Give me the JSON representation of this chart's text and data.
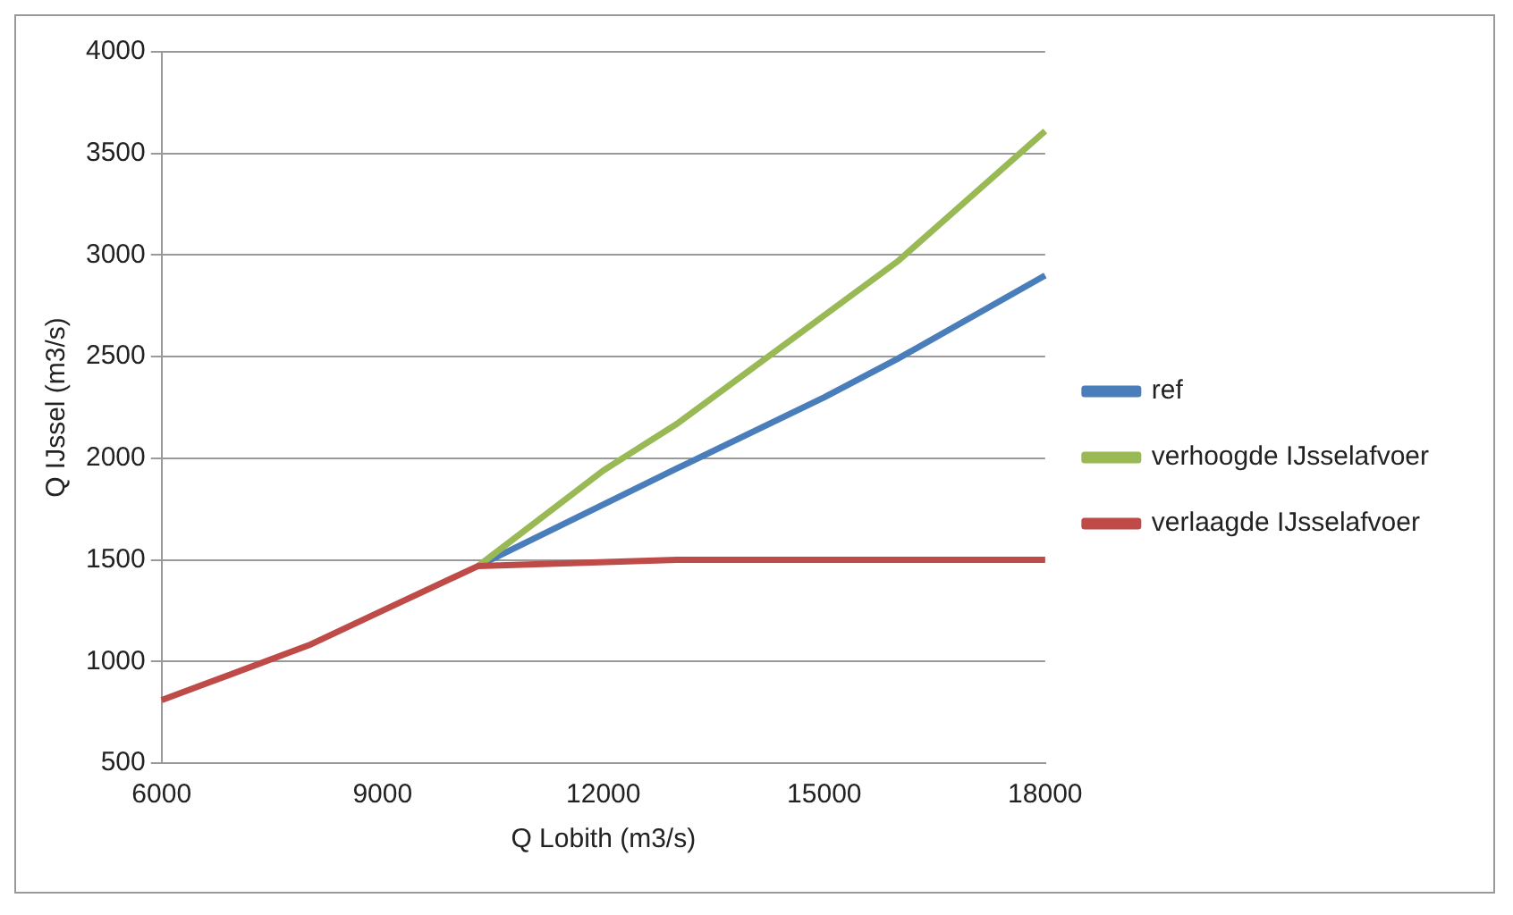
{
  "chart_data": {
    "type": "line",
    "xlabel": "Q Lobith (m3/s)",
    "ylabel": "Q IJssel (m3/s)",
    "xlim": [
      6000,
      18000
    ],
    "xticks": [
      6000,
      9000,
      12000,
      15000,
      18000
    ],
    "ylim": [
      500,
      4000
    ],
    "yticks": [
      500,
      1000,
      1500,
      2000,
      2500,
      3000,
      3500,
      4000
    ],
    "grid": "y",
    "legend": "right",
    "marker": "none",
    "series": [
      {
        "name": "ref",
        "color": "#4a7ebb",
        "x": [
          10300,
          13000,
          15000,
          16000,
          18000
        ],
        "values": [
          1470,
          1950,
          2300,
          2490,
          2900
        ]
      },
      {
        "name": "verhoogde IJsselafvoer",
        "color": "#98b954",
        "x": [
          10300,
          12000,
          13000,
          16000,
          18000
        ],
        "values": [
          1470,
          1940,
          2170,
          2970,
          3610
        ]
      },
      {
        "name": "verlaagde IJsselafvoer",
        "color": "#be4b48",
        "x": [
          6000,
          8000,
          9000,
          10300,
          13000,
          18000
        ],
        "values": [
          810,
          1080,
          1250,
          1470,
          1500,
          1500
        ]
      }
    ]
  }
}
